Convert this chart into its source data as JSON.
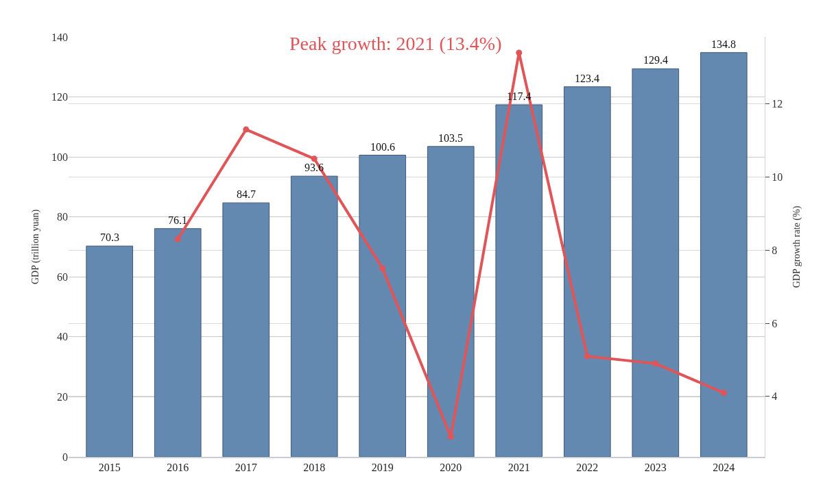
{
  "chart_data": {
    "type": "bar",
    "ylabel": "GDP (trillion yuan)",
    "y2label": "GDP growth rate (%)",
    "categories": [
      "2015",
      "2016",
      "2017",
      "2018",
      "2019",
      "2020",
      "2021",
      "2022",
      "2023",
      "2024"
    ],
    "series": [
      {
        "color": "#6389b1",
        "values": [
          70.3,
          76.1,
          84.7,
          93.6,
          100.6,
          103.5,
          117.4,
          123.4,
          129.4,
          134.8
        ],
        "value_labels": [
          "70.3",
          "76.1",
          "84.7",
          "93.6",
          "100.6",
          "103.5",
          "117.4",
          "123.4",
          "129.4",
          "134.8"
        ]
      },
      {
        "type": "line",
        "axis": "y2",
        "color": "#e05558",
        "marker": "circle",
        "line_style": "solid",
        "values": [
          null,
          8.3,
          11.3,
          10.5,
          7.5,
          2.9,
          13.4,
          5.1,
          4.9,
          4.1
        ]
      }
    ],
    "ylim": [
      0,
      140
    ],
    "yticks": [
      0,
      20,
      40,
      60,
      80,
      100,
      120,
      140
    ],
    "y2lim": [
      2.35,
      13.83
    ],
    "y2ticks": [
      4,
      6,
      8,
      10,
      12
    ],
    "grid": true,
    "legend": false,
    "annotations": [
      "Peak growth: 2021 (13.4%)"
    ]
  }
}
